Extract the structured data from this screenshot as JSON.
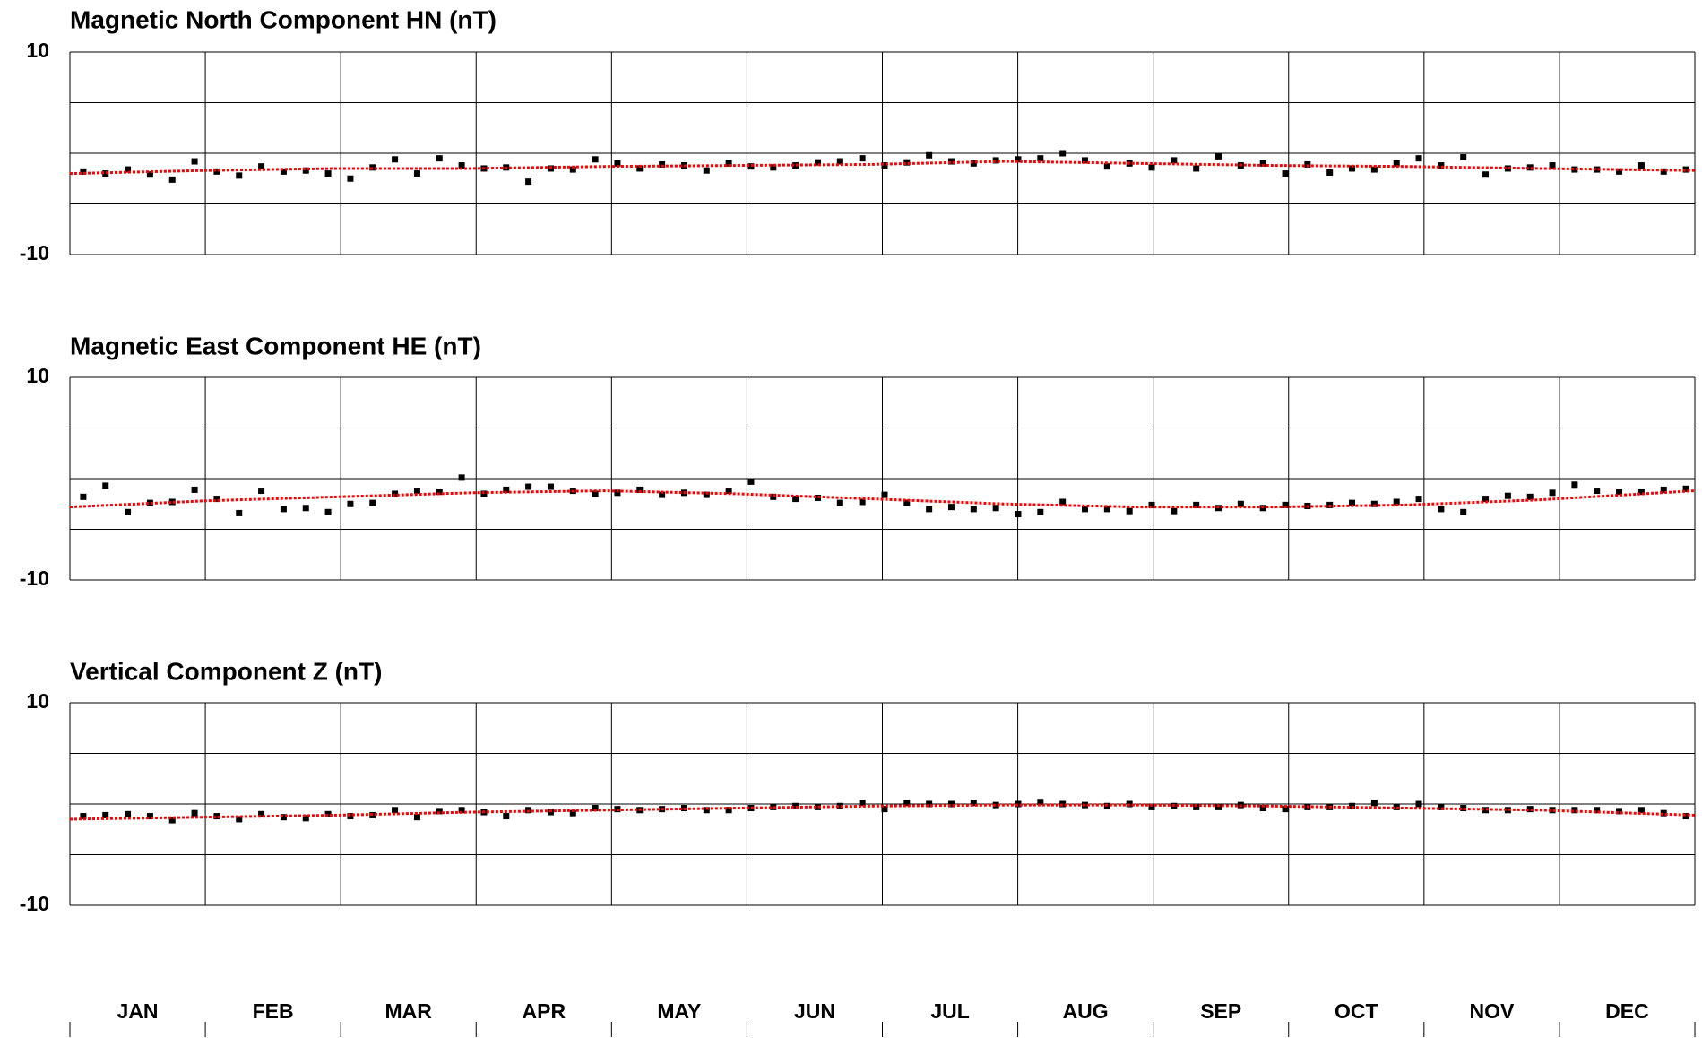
{
  "chart_data": [
    {
      "type": "scatter",
      "title": "Magnetic North Component HN (nT)",
      "xlim": [
        0,
        365
      ],
      "ylim": [
        -10,
        10
      ],
      "yticks": [
        -10,
        10
      ],
      "grid_yticks": [
        -5,
        0,
        5
      ],
      "color": "#000000",
      "x": [
        3,
        8,
        13,
        18,
        23,
        28,
        33,
        38,
        43,
        48,
        53,
        58,
        63,
        68,
        73,
        78,
        83,
        88,
        93,
        98,
        103,
        108,
        113,
        118,
        123,
        128,
        133,
        138,
        143,
        148,
        153,
        158,
        163,
        168,
        173,
        178,
        183,
        188,
        193,
        198,
        203,
        208,
        213,
        218,
        223,
        228,
        233,
        238,
        243,
        248,
        253,
        258,
        263,
        268,
        273,
        278,
        283,
        288,
        293,
        298,
        303,
        308,
        313,
        318,
        323,
        328,
        333,
        338,
        343,
        348,
        353,
        358,
        363
      ],
      "values": [
        -1.8,
        -2.0,
        -1.6,
        -2.1,
        -2.6,
        -0.8,
        -1.8,
        -2.2,
        -1.3,
        -1.8,
        -1.7,
        -2.0,
        -2.5,
        -1.4,
        -0.6,
        -2.0,
        -0.5,
        -1.2,
        -1.5,
        -1.4,
        -2.8,
        -1.5,
        -1.6,
        -0.6,
        -1.0,
        -1.5,
        -1.1,
        -1.2,
        -1.7,
        -1.0,
        -1.3,
        -1.4,
        -1.2,
        -0.9,
        -0.8,
        -0.5,
        -1.2,
        -0.9,
        -0.2,
        -0.8,
        -1.0,
        -0.7,
        -0.6,
        -0.5,
        0.0,
        -0.7,
        -1.3,
        -1.0,
        -1.4,
        -0.7,
        -1.5,
        -0.3,
        -1.2,
        -1.0,
        -2.0,
        -1.1,
        -1.9,
        -1.5,
        -1.6,
        -1.0,
        -0.5,
        -1.2,
        -0.4,
        -2.1,
        -1.5,
        -1.4,
        -1.2,
        -1.6,
        -1.6,
        -1.8,
        -1.2,
        -1.8,
        -1.6
      ],
      "trend_color": "#ff0000",
      "trend_x": [
        0,
        30,
        60,
        90,
        120,
        150,
        180,
        210,
        240,
        270,
        300,
        330,
        365
      ],
      "trend_values": [
        -2.0,
        -1.7,
        -1.5,
        -1.5,
        -1.3,
        -1.2,
        -1.1,
        -0.8,
        -1.0,
        -1.2,
        -1.3,
        -1.5,
        -1.7
      ]
    },
    {
      "type": "scatter",
      "title": "Magnetic East Component HE (nT)",
      "xlim": [
        0,
        365
      ],
      "ylim": [
        -10,
        10
      ],
      "yticks": [
        -10,
        10
      ],
      "grid_yticks": [
        -5,
        0,
        5
      ],
      "color": "#000000",
      "x": [
        3,
        8,
        13,
        18,
        23,
        28,
        33,
        38,
        43,
        48,
        53,
        58,
        63,
        68,
        73,
        78,
        83,
        88,
        93,
        98,
        103,
        108,
        113,
        118,
        123,
        128,
        133,
        138,
        143,
        148,
        153,
        158,
        163,
        168,
        173,
        178,
        183,
        188,
        193,
        198,
        203,
        208,
        213,
        218,
        223,
        228,
        233,
        238,
        243,
        248,
        253,
        258,
        263,
        268,
        273,
        278,
        283,
        288,
        293,
        298,
        303,
        308,
        313,
        318,
        323,
        328,
        333,
        338,
        343,
        348,
        353,
        358,
        363
      ],
      "values": [
        -1.8,
        -0.7,
        -3.3,
        -2.4,
        -2.3,
        -1.1,
        -2.0,
        -3.4,
        -1.2,
        -3.0,
        -2.9,
        -3.3,
        -2.5,
        -2.4,
        -1.5,
        -1.2,
        -1.3,
        0.1,
        -1.5,
        -1.1,
        -0.8,
        -0.8,
        -1.2,
        -1.5,
        -1.4,
        -1.1,
        -1.6,
        -1.4,
        -1.6,
        -1.2,
        -0.3,
        -1.8,
        -2.0,
        -1.9,
        -2.4,
        -2.3,
        -1.6,
        -2.4,
        -3.0,
        -2.8,
        -3.0,
        -2.9,
        -3.5,
        -3.3,
        -2.3,
        -3.0,
        -3.0,
        -3.2,
        -2.6,
        -3.2,
        -2.6,
        -2.9,
        -2.5,
        -2.9,
        -2.6,
        -2.7,
        -2.6,
        -2.4,
        -2.5,
        -2.3,
        -2.0,
        -3.0,
        -3.3,
        -2.0,
        -1.7,
        -1.8,
        -1.4,
        -0.6,
        -1.2,
        -1.3,
        -1.3,
        -1.1,
        -1.0
      ],
      "trend_color": "#ff0000",
      "trend_x": [
        0,
        30,
        60,
        90,
        120,
        150,
        180,
        210,
        240,
        270,
        300,
        330,
        365
      ],
      "trend_values": [
        -2.8,
        -2.2,
        -1.8,
        -1.4,
        -1.2,
        -1.5,
        -2.0,
        -2.5,
        -2.8,
        -2.8,
        -2.6,
        -2.1,
        -1.2
      ]
    },
    {
      "type": "scatter",
      "title": "Vertical Component Z (nT)",
      "xlim": [
        0,
        365
      ],
      "ylim": [
        -10,
        10
      ],
      "yticks": [
        -10,
        10
      ],
      "grid_yticks": [
        -5,
        0,
        5
      ],
      "color": "#000000",
      "x": [
        3,
        8,
        13,
        18,
        23,
        28,
        33,
        38,
        43,
        48,
        53,
        58,
        63,
        68,
        73,
        78,
        83,
        88,
        93,
        98,
        103,
        108,
        113,
        118,
        123,
        128,
        133,
        138,
        143,
        148,
        153,
        158,
        163,
        168,
        173,
        178,
        183,
        188,
        193,
        198,
        203,
        208,
        213,
        218,
        223,
        228,
        233,
        238,
        243,
        248,
        253,
        258,
        263,
        268,
        273,
        278,
        283,
        288,
        293,
        298,
        303,
        308,
        313,
        318,
        323,
        328,
        333,
        338,
        343,
        348,
        353,
        358,
        363
      ],
      "values": [
        -1.2,
        -1.1,
        -1.0,
        -1.2,
        -1.6,
        -0.9,
        -1.2,
        -1.5,
        -1.0,
        -1.3,
        -1.4,
        -1.0,
        -1.2,
        -1.1,
        -0.6,
        -1.3,
        -0.7,
        -0.6,
        -0.8,
        -1.2,
        -0.6,
        -0.8,
        -0.9,
        -0.4,
        -0.5,
        -0.6,
        -0.5,
        -0.4,
        -0.6,
        -0.6,
        -0.4,
        -0.3,
        -0.2,
        -0.3,
        -0.2,
        0.1,
        -0.5,
        0.1,
        0.0,
        0.0,
        0.1,
        -0.1,
        0.0,
        0.2,
        0.0,
        -0.1,
        -0.2,
        0.0,
        -0.3,
        -0.2,
        -0.3,
        -0.3,
        -0.1,
        -0.4,
        -0.5,
        -0.3,
        -0.3,
        -0.2,
        0.1,
        -0.3,
        0.0,
        -0.3,
        -0.4,
        -0.6,
        -0.6,
        -0.5,
        -0.6,
        -0.6,
        -0.6,
        -0.7,
        -0.6,
        -0.9,
        -1.2
      ],
      "trend_color": "#ff0000",
      "trend_x": [
        0,
        30,
        60,
        90,
        120,
        150,
        180,
        210,
        240,
        270,
        300,
        330,
        365
      ],
      "trend_values": [
        -1.5,
        -1.3,
        -1.1,
        -0.8,
        -0.6,
        -0.4,
        -0.2,
        -0.1,
        -0.1,
        -0.2,
        -0.4,
        -0.6,
        -1.1
      ]
    }
  ],
  "month_axis": {
    "categories": [
      "JAN",
      "FEB",
      "MAR",
      "APR",
      "MAY",
      "JUN",
      "JUL",
      "AUG",
      "SEP",
      "OCT",
      "NOV",
      "DEC"
    ]
  }
}
